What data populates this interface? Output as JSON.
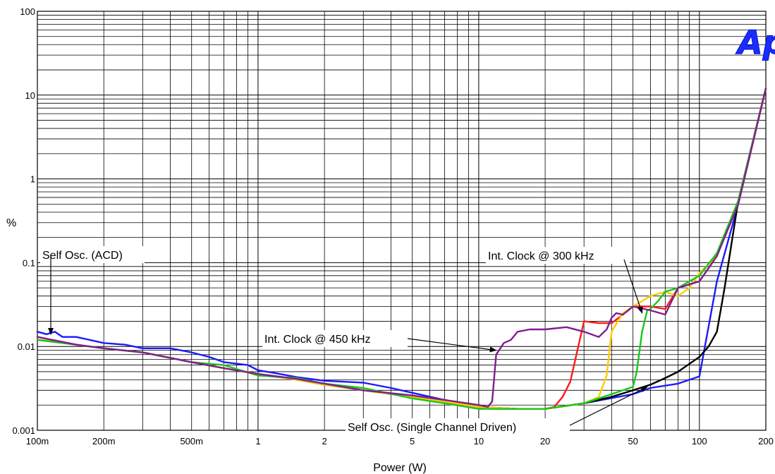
{
  "chart_data": {
    "type": "line",
    "title": "",
    "xlabel": "Power (W)",
    "ylabel": "%",
    "x_scale": "log",
    "y_scale": "log",
    "xlim": [
      0.1,
      200
    ],
    "ylim": [
      0.001,
      100
    ],
    "grid": true,
    "x_ticks": [
      {
        "v": 0.1,
        "label": "100m"
      },
      {
        "v": 0.2,
        "label": "200m"
      },
      {
        "v": 0.5,
        "label": "500m"
      },
      {
        "v": 1,
        "label": "1"
      },
      {
        "v": 2,
        "label": "2"
      },
      {
        "v": 5,
        "label": "5"
      },
      {
        "v": 10,
        "label": "10"
      },
      {
        "v": 20,
        "label": "20"
      },
      {
        "v": 50,
        "label": "50"
      },
      {
        "v": 100,
        "label": "100"
      },
      {
        "v": 200,
        "label": "200"
      }
    ],
    "y_ticks": [
      {
        "v": 100,
        "label": "100"
      },
      {
        "v": 10,
        "label": "10"
      },
      {
        "v": 1,
        "label": "1"
      },
      {
        "v": 0.1,
        "label": "0.1"
      },
      {
        "v": 0.01,
        "label": "0.01"
      },
      {
        "v": 0.001,
        "label": "0.001"
      }
    ],
    "logo_text": "Ap",
    "series": [
      {
        "color": "#1a1aff",
        "x": [
          0.1,
          0.11,
          0.12,
          0.13,
          0.15,
          0.2,
          0.25,
          0.3,
          0.4,
          0.5,
          0.6,
          0.7,
          0.9,
          1,
          1.2,
          1.5,
          2,
          3,
          4,
          5,
          7,
          10,
          12,
          15,
          20,
          30,
          50,
          60,
          80,
          100,
          120,
          150,
          200
        ],
        "y": [
          0.015,
          0.014,
          0.015,
          0.013,
          0.013,
          0.011,
          0.0105,
          0.0095,
          0.0095,
          0.0085,
          0.0075,
          0.0065,
          0.006,
          0.0052,
          0.0048,
          0.0043,
          0.0039,
          0.0037,
          0.0032,
          0.0028,
          0.0023,
          0.0019,
          0.0018,
          0.0018,
          0.0018,
          0.0021,
          0.0027,
          0.0032,
          0.0036,
          0.0044,
          0.06,
          0.5,
          12
        ]
      },
      {
        "color": "#000000",
        "x": [
          0.1,
          0.15,
          0.2,
          0.3,
          0.5,
          0.7,
          1,
          1.5,
          2,
          3,
          5,
          7,
          10,
          15,
          20,
          30,
          40,
          50,
          60,
          70,
          80,
          100,
          110,
          120,
          130,
          150,
          200
        ],
        "y": [
          0.012,
          0.0105,
          0.0095,
          0.0085,
          0.0065,
          0.0055,
          0.0047,
          0.004,
          0.0035,
          0.003,
          0.0025,
          0.0022,
          0.0019,
          0.0018,
          0.0018,
          0.0021,
          0.0025,
          0.003,
          0.0035,
          0.0042,
          0.005,
          0.0075,
          0.01,
          0.015,
          0.05,
          0.55,
          12
        ]
      },
      {
        "color": "#ff1a1a",
        "x": [
          0.1,
          0.15,
          0.2,
          0.3,
          0.5,
          0.7,
          1,
          1.5,
          2,
          3,
          5,
          7,
          10,
          15,
          20,
          22,
          24,
          26,
          28,
          30,
          35,
          40,
          45,
          50,
          60,
          70,
          80,
          90,
          100,
          120,
          150,
          200
        ],
        "y": [
          0.013,
          0.0105,
          0.0095,
          0.0085,
          0.0065,
          0.0055,
          0.0047,
          0.0041,
          0.0036,
          0.003,
          0.0026,
          0.0022,
          0.0019,
          0.0018,
          0.0018,
          0.0019,
          0.0025,
          0.0038,
          0.009,
          0.02,
          0.019,
          0.019,
          0.024,
          0.03,
          0.03,
          0.028,
          0.05,
          0.055,
          0.06,
          0.12,
          0.55,
          12
        ]
      },
      {
        "color": "#ffcc00",
        "x": [
          0.1,
          0.15,
          0.2,
          0.3,
          0.5,
          0.7,
          1,
          1.5,
          2,
          3,
          5,
          7,
          10,
          15,
          20,
          30,
          35,
          38,
          40,
          45,
          50,
          60,
          70,
          80,
          90,
          100,
          120,
          150,
          200
        ],
        "y": [
          0.012,
          0.0105,
          0.0095,
          0.0085,
          0.0065,
          0.0055,
          0.0047,
          0.004,
          0.0035,
          0.003,
          0.0025,
          0.0022,
          0.0019,
          0.0018,
          0.0018,
          0.0021,
          0.0025,
          0.0045,
          0.015,
          0.025,
          0.03,
          0.04,
          0.045,
          0.04,
          0.05,
          0.075,
          0.12,
          0.5,
          12
        ]
      },
      {
        "color": "#18c818",
        "x": [
          0.1,
          0.15,
          0.2,
          0.3,
          0.5,
          0.7,
          1,
          1.5,
          2,
          3,
          5,
          7,
          10,
          15,
          20,
          30,
          40,
          50,
          52,
          55,
          58,
          60,
          65,
          70,
          80,
          90,
          100,
          120,
          150,
          200
        ],
        "y": [
          0.012,
          0.0105,
          0.0095,
          0.0085,
          0.0065,
          0.006,
          0.0045,
          0.0042,
          0.0036,
          0.0032,
          0.0024,
          0.0021,
          0.0018,
          0.0018,
          0.0018,
          0.0021,
          0.0027,
          0.0033,
          0.005,
          0.015,
          0.027,
          0.028,
          0.035,
          0.045,
          0.05,
          0.06,
          0.07,
          0.13,
          0.55,
          12
        ]
      },
      {
        "color": "#7f1f8f",
        "x": [
          0.1,
          0.15,
          0.2,
          0.3,
          0.5,
          0.7,
          1,
          1.5,
          2,
          3,
          5,
          7,
          10,
          11,
          11.5,
          12,
          13,
          14,
          15,
          17,
          20,
          25,
          30,
          35,
          38,
          40,
          42,
          45,
          50,
          60,
          70,
          80,
          90,
          100,
          120,
          150,
          200
        ],
        "y": [
          0.013,
          0.0105,
          0.0095,
          0.0085,
          0.0065,
          0.0055,
          0.0047,
          0.0041,
          0.0036,
          0.003,
          0.0026,
          0.0023,
          0.002,
          0.0019,
          0.0022,
          0.008,
          0.011,
          0.012,
          0.015,
          0.016,
          0.016,
          0.017,
          0.015,
          0.013,
          0.016,
          0.022,
          0.025,
          0.024,
          0.03,
          0.027,
          0.024,
          0.05,
          0.055,
          0.06,
          0.12,
          0.5,
          12
        ]
      }
    ],
    "annotations": [
      {
        "text": "Self Osc. (ACD)",
        "point": [
          0.115,
          0.014
        ]
      },
      {
        "text": "Int. Clock @ 300 kHz",
        "point": [
          55,
          0.025
        ]
      },
      {
        "text": "Int. Clock @ 450 kHz",
        "point": [
          12,
          0.009
        ]
      },
      {
        "text": "Self Osc. (Single Channel Driven)",
        "point": [
          58,
          0.0033
        ]
      }
    ]
  }
}
